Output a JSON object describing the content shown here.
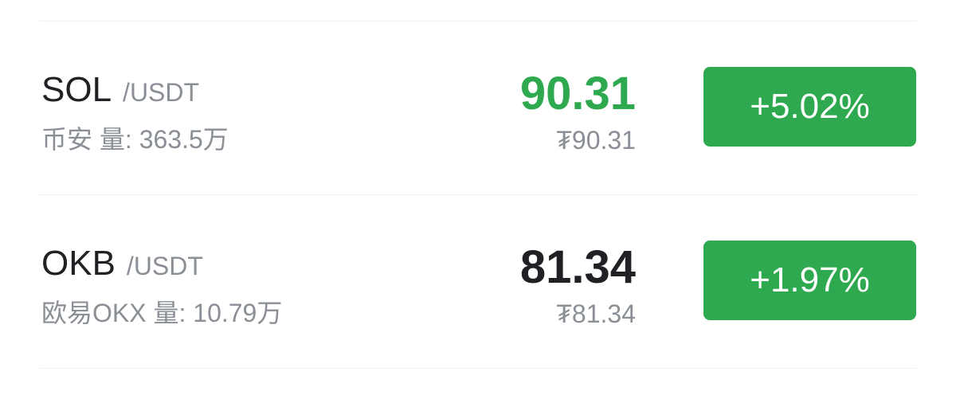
{
  "rows": [
    {
      "base": "SOL",
      "quote": "/USDT",
      "exchange": "币安",
      "volume_label": "量: 363.5万",
      "price": "90.31",
      "price_color": "#2fa94f",
      "fiat": "₮90.31",
      "change": "+5.02%"
    },
    {
      "base": "OKB",
      "quote": "/USDT",
      "exchange": "欧易OKX",
      "volume_label": "量: 10.79万",
      "price": "81.34",
      "price_color": "#1f2124",
      "fiat": "₮81.34",
      "change": "+1.97%"
    }
  ],
  "colors": {
    "up": "#2fa94f",
    "text": "#1f2124",
    "muted": "#8a8f96"
  }
}
